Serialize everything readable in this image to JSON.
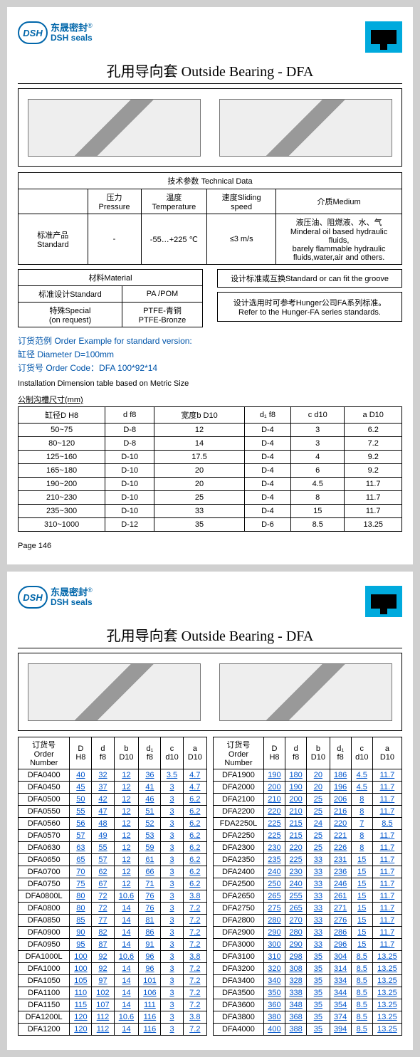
{
  "brand_cn": "东晟密封",
  "brand_en": "DSH seals",
  "brand_abbr": "DSH",
  "reg": "®",
  "title": "孔用导向套 Outside  Bearing - DFA",
  "tech_header": "技术参数 Technical Data",
  "tech_cols": [
    "压力Pressure",
    "温度Temperature",
    "速度Sliding speed",
    "介质Medium"
  ],
  "tech_rowlabel": "标准产品Standard",
  "tech_vals": [
    "-",
    "-55…+225 ℃",
    "≤3 m/s"
  ],
  "medium_cn": "液压油、阻燃液、水、气",
  "medium_en1": "Minderal oil based hydraulic fluids,",
  "medium_en2": "barely flammable hydraulic",
  "medium_en3": "fluids,water,air and others.",
  "mat_header": "材料Material",
  "mat_r1c1": "标准设计Standard",
  "mat_r1c2": "PA /POM",
  "mat_r2c1a": "特殊Special",
  "mat_r2c1b": "(on request)",
  "mat_r2c2a": "PTFE-青铜",
  "mat_r2c2b": "PTFE-Bronze",
  "std_top": "设计标准或互换Standard or can fit the groove",
  "std_cn": "设计选用时可参考Hunger公司FA系列标准。",
  "std_en": "Refer to the Hunger-FA series standards.",
  "order_ex": "订货范例  Order Example for standard version:",
  "order_dia": "缸径  Diameter  D=100mm",
  "order_code": "订货号 Order Code：DFA 100*92*14",
  "install": "Installation Dimension table based on Metric Size",
  "metric": "公制沟槽尺寸(mm)",
  "dim_headers": [
    "缸径D  H8",
    "d  f8",
    "宽度b  D10",
    "d₁  f8",
    "c  d10",
    "a  D10"
  ],
  "dim_rows": [
    [
      "50~75",
      "D-8",
      "12",
      "D-4",
      "3",
      "6.2"
    ],
    [
      "80~120",
      "D-8",
      "14",
      "D-4",
      "3",
      "7.2"
    ],
    [
      "125~160",
      "D-10",
      "17.5",
      "D-4",
      "4",
      "9.2"
    ],
    [
      "165~180",
      "D-10",
      "20",
      "D-4",
      "6",
      "9.2"
    ],
    [
      "190~200",
      "D-10",
      "20",
      "D-4",
      "4.5",
      "11.7"
    ],
    [
      "210~230",
      "D-10",
      "25",
      "D-4",
      "8",
      "11.7"
    ],
    [
      "235~300",
      "D-10",
      "33",
      "D-4",
      "15",
      "11.7"
    ],
    [
      "310~1000",
      "D-12",
      "35",
      "D-6",
      "8.5",
      "13.25"
    ]
  ],
  "page_num": "Page  146",
  "parts_headers_label": "订货号\nOrder\nNumber",
  "parts_cols": [
    "D H8",
    "d f8",
    "b D10",
    "d₁ f8",
    "c d10",
    "a D10"
  ],
  "parts_left": [
    [
      "DFA0400",
      "40",
      "32",
      "12",
      "36",
      "3.5",
      "4.7"
    ],
    [
      "DFA0450",
      "45",
      "37",
      "12",
      "41",
      "3",
      "4.7"
    ],
    [
      "DFA0500",
      "50",
      "42",
      "12",
      "46",
      "3",
      "6.2"
    ],
    [
      "DFA0550",
      "55",
      "47",
      "12",
      "51",
      "3",
      "6.2"
    ],
    [
      "DFA0560",
      "56",
      "48",
      "12",
      "52",
      "3",
      "6.2"
    ],
    [
      "DFA0570",
      "57",
      "49",
      "12",
      "53",
      "3",
      "6.2"
    ],
    [
      "DFA0630",
      "63",
      "55",
      "12",
      "59",
      "3",
      "6.2"
    ],
    [
      "DFA0650",
      "65",
      "57",
      "12",
      "61",
      "3",
      "6.2"
    ],
    [
      "DFA0700",
      "70",
      "62",
      "12",
      "66",
      "3",
      "6.2"
    ],
    [
      "DFA0750",
      "75",
      "67",
      "12",
      "71",
      "3",
      "6.2"
    ],
    [
      "DFA0800L",
      "80",
      "72",
      "10.6",
      "76",
      "3",
      "3.8"
    ],
    [
      "DFA0800",
      "80",
      "72",
      "14",
      "76",
      "3",
      "7.2"
    ],
    [
      "DFA0850",
      "85",
      "77",
      "14",
      "81",
      "3",
      "7.2"
    ],
    [
      "DFA0900",
      "90",
      "82",
      "14",
      "86",
      "3",
      "7.2"
    ],
    [
      "DFA0950",
      "95",
      "87",
      "14",
      "91",
      "3",
      "7.2"
    ],
    [
      "DFA1000L",
      "100",
      "92",
      "10.6",
      "96",
      "3",
      "3.8"
    ],
    [
      "DFA1000",
      "100",
      "92",
      "14",
      "96",
      "3",
      "7.2"
    ],
    [
      "DFA1050",
      "105",
      "97",
      "14",
      "101",
      "3",
      "7.2"
    ],
    [
      "DFA1100",
      "110",
      "102",
      "14",
      "106",
      "3",
      "7.2"
    ],
    [
      "DFA1150",
      "115",
      "107",
      "14",
      "111",
      "3",
      "7.2"
    ],
    [
      "DFA1200L",
      "120",
      "112",
      "10.6",
      "116",
      "3",
      "3.8"
    ],
    [
      "DFA1200",
      "120",
      "112",
      "14",
      "116",
      "3",
      "7.2"
    ]
  ],
  "parts_right": [
    [
      "DFA1900",
      "190",
      "180",
      "20",
      "186",
      "4.5",
      "11.7"
    ],
    [
      "DFA2000",
      "200",
      "190",
      "20",
      "196",
      "4.5",
      "11.7"
    ],
    [
      "DFA2100",
      "210",
      "200",
      "25",
      "206",
      "8",
      "11.7"
    ],
    [
      "DFA2200",
      "220",
      "210",
      "25",
      "216",
      "8",
      "11.7"
    ],
    [
      "FDA2250L",
      "225",
      "215",
      "24",
      "220",
      "7",
      "8.5"
    ],
    [
      "DFA2250",
      "225",
      "215",
      "25",
      "221",
      "8",
      "11.7"
    ],
    [
      "DFA2300",
      "230",
      "220",
      "25",
      "226",
      "8",
      "11.7"
    ],
    [
      "DFA2350",
      "235",
      "225",
      "33",
      "231",
      "15",
      "11.7"
    ],
    [
      "DFA2400",
      "240",
      "230",
      "33",
      "236",
      "15",
      "11.7"
    ],
    [
      "DFA2500",
      "250",
      "240",
      "33",
      "246",
      "15",
      "11.7"
    ],
    [
      "DFA2650",
      "265",
      "255",
      "33",
      "261",
      "15",
      "11.7"
    ],
    [
      "DFA2750",
      "275",
      "265",
      "33",
      "271",
      "15",
      "11.7"
    ],
    [
      "DFA2800",
      "280",
      "270",
      "33",
      "276",
      "15",
      "11.7"
    ],
    [
      "DFA2900",
      "290",
      "280",
      "33",
      "286",
      "15",
      "11.7"
    ],
    [
      "DFA3000",
      "300",
      "290",
      "33",
      "296",
      "15",
      "11.7"
    ],
    [
      "DFA3100",
      "310",
      "298",
      "35",
      "304",
      "8.5",
      "13.25"
    ],
    [
      "DFA3200",
      "320",
      "308",
      "35",
      "314",
      "8.5",
      "13.25"
    ],
    [
      "DFA3400",
      "340",
      "328",
      "35",
      "334",
      "8.5",
      "13.25"
    ],
    [
      "DFA3500",
      "350",
      "338",
      "35",
      "344",
      "8.5",
      "13.25"
    ],
    [
      "DFA3600",
      "360",
      "348",
      "35",
      "354",
      "8.5",
      "13.25"
    ],
    [
      "DFA3800",
      "380",
      "368",
      "35",
      "374",
      "8.5",
      "13.25"
    ],
    [
      "DFA4000",
      "400",
      "388",
      "35",
      "394",
      "8.5",
      "13.25"
    ]
  ]
}
